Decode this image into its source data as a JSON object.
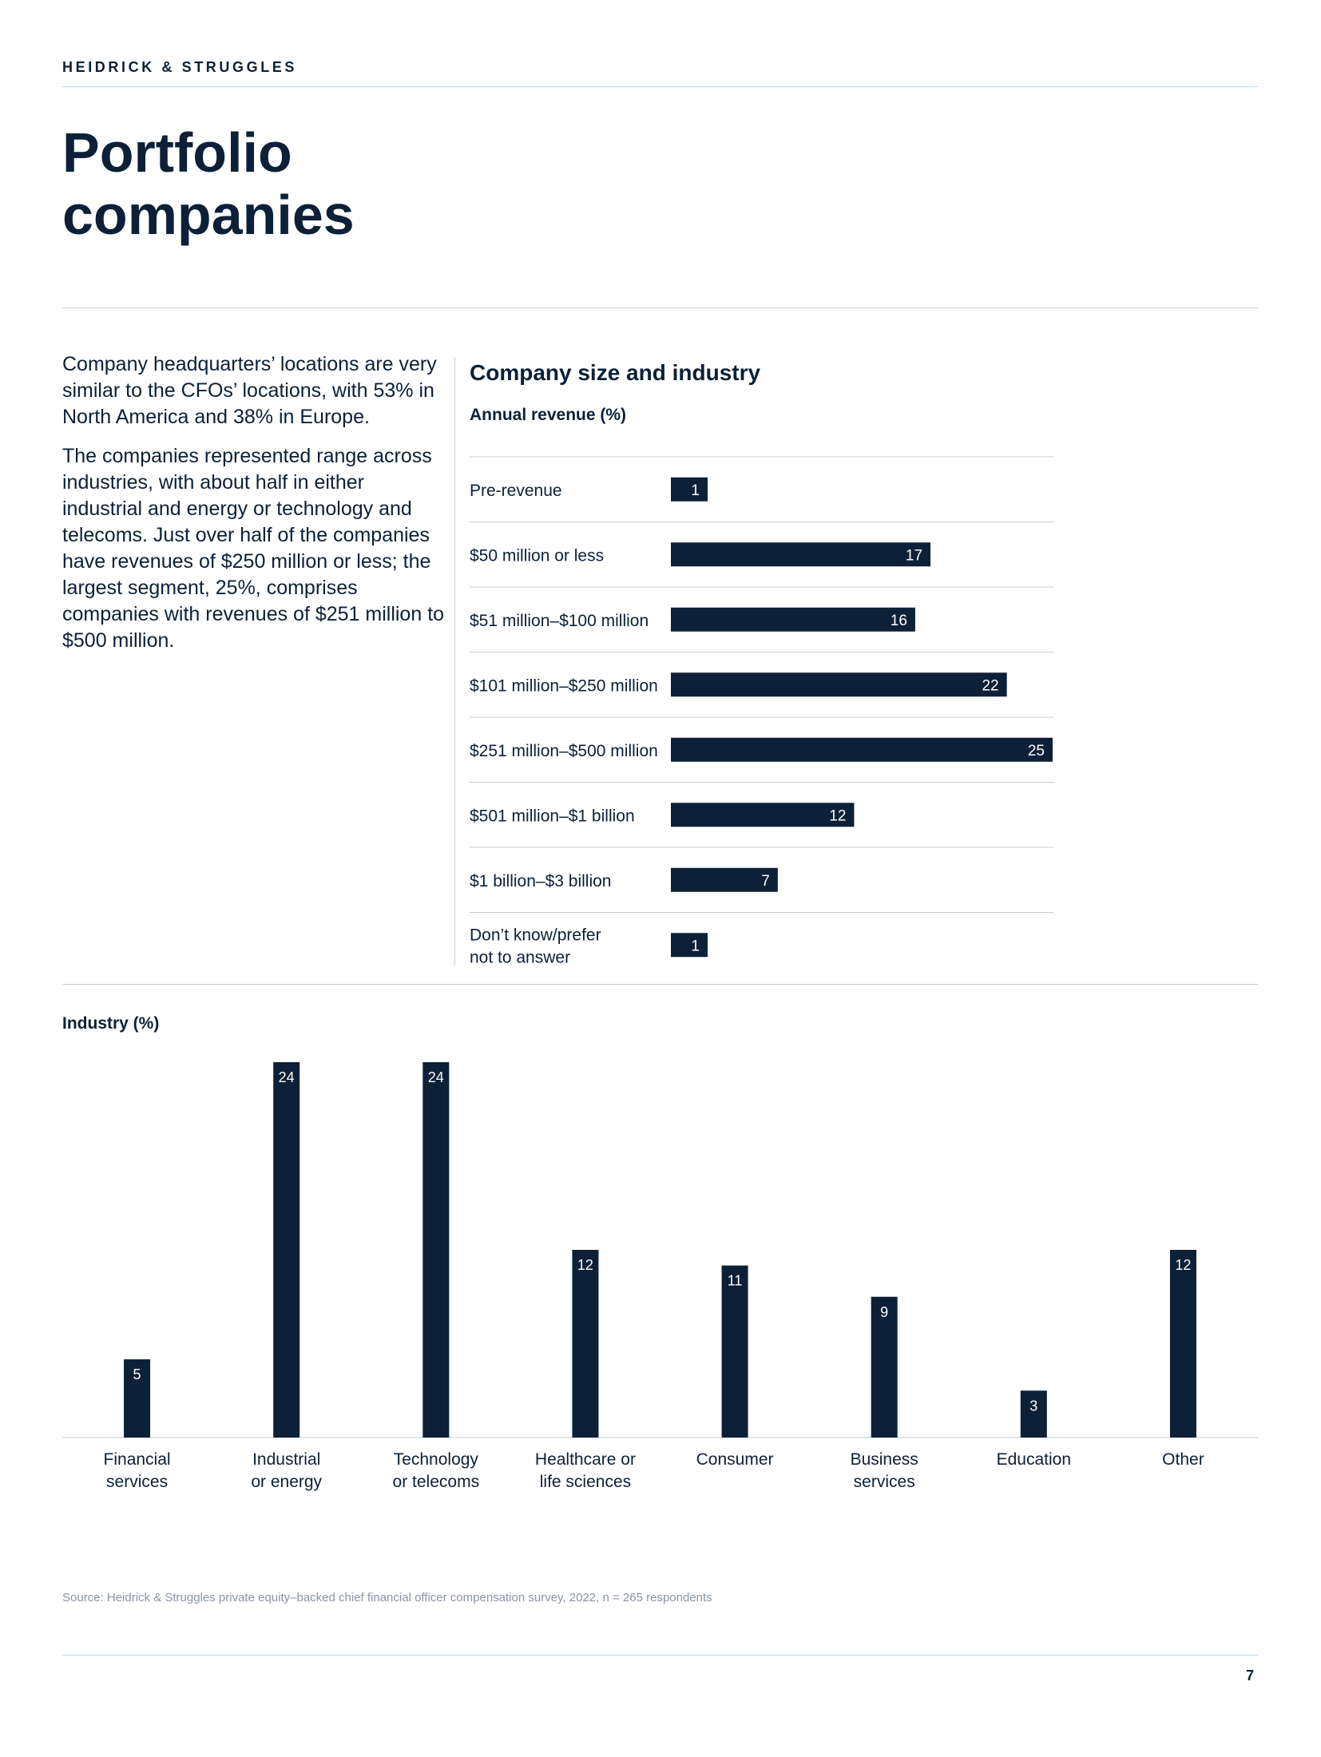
{
  "header": {
    "brand": "HEIDRICK & STRUGGLES"
  },
  "page": {
    "title_line1": "Portfolio",
    "title_line2": "companies",
    "paragraphs": [
      "Company headquarters’ locations are very similar to the CFOs’ locations, with 53% in North America and 38% in Europe.",
      "The companies represented range across industries, with about half in either industrial and energy or technology and telecoms. Just over half of the companies have revenues of $250 million or less; the largest segment, 25%, comprises companies with revenues of $251 million to $500 million."
    ],
    "source": "Source: Heidrick & Struggles private equity–backed chief financial officer compensation survey, 2022, n = 265 respondents",
    "page_number": "7"
  },
  "colors": {
    "bar": "#0c2038",
    "text": "#0c2038",
    "grid": "#c9ccd1",
    "accent_rule": "#aee0ec",
    "label_inside": "#ffffff"
  },
  "chart_data": [
    {
      "type": "bar",
      "orientation": "horizontal",
      "title": "Company size and industry",
      "subtitle": "Annual revenue (%)",
      "categories": [
        [
          "Pre-revenue"
        ],
        [
          "$50 million or less"
        ],
        [
          "$51 million–$100 million"
        ],
        [
          "$101 million–$250 million"
        ],
        [
          "$251 million–$500 million"
        ],
        [
          "$501 million–$1 billion"
        ],
        [
          "$1 billion–$3 billion"
        ],
        [
          "Don’t know/prefer",
          "not to answer"
        ]
      ],
      "values": [
        1,
        17,
        16,
        22,
        25,
        12,
        7,
        1
      ],
      "xlim": [
        0,
        25
      ]
    },
    {
      "type": "bar",
      "orientation": "vertical",
      "title": "Industry (%)",
      "categories": [
        [
          "Financial",
          "services"
        ],
        [
          "Industrial",
          "or energy"
        ],
        [
          "Technology",
          "or telecoms"
        ],
        [
          "Healthcare or",
          "life sciences"
        ],
        [
          "Consumer"
        ],
        [
          "Business",
          "services"
        ],
        [
          "Education"
        ],
        [
          "Other"
        ]
      ],
      "values": [
        5,
        24,
        24,
        12,
        11,
        9,
        3,
        12
      ],
      "ylim": [
        0,
        24
      ]
    }
  ]
}
